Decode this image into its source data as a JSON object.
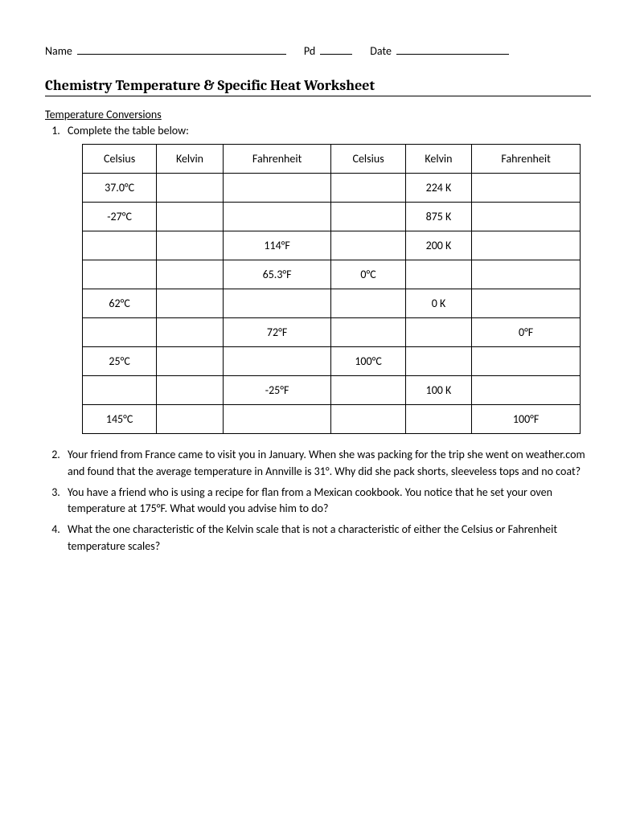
{
  "header": {
    "name_label": "Name",
    "pd_label": "Pd",
    "date_label": "Date"
  },
  "title": "Chemistry Temperature & Specific Heat Worksheet",
  "section": "Temperature Conversions",
  "q1_text": "Complete the table below:",
  "table": {
    "columns": [
      "Celsius",
      "Kelvin",
      "Fahrenheit",
      "Celsius",
      "Kelvin",
      "Fahrenheit"
    ],
    "rows": [
      [
        "37.0°C",
        "",
        "",
        "",
        "224 K",
        ""
      ],
      [
        "-27°C",
        "",
        "",
        "",
        "875 K",
        ""
      ],
      [
        "",
        "",
        "114°F",
        "",
        "200 K",
        ""
      ],
      [
        "",
        "",
        "65.3°F",
        "0°C",
        "",
        ""
      ],
      [
        "62°C",
        "",
        "",
        "",
        "0 K",
        ""
      ],
      [
        "",
        "",
        "72°F",
        "",
        "",
        "0°F"
      ],
      [
        "25°C",
        "",
        "",
        "100°C",
        "",
        ""
      ],
      [
        "",
        "",
        "-25°F",
        "",
        "100 K",
        ""
      ],
      [
        "145°C",
        "",
        "",
        "",
        "",
        "100°F"
      ]
    ]
  },
  "q2_text": "Your friend from France came to visit you in January.  When she was packing for the trip she went on weather.com and found that the average temperature in Annville is 31°.  Why did she pack shorts, sleeveless tops and no coat?",
  "q3_text": "You have a friend who is using a recipe for flan from a Mexican cookbook.  You notice that he set your oven temperature at 175°F.  What would you advise him to do?",
  "q4_text": "What the one characteristic of the Kelvin scale that is not a characteristic of either the Celsius or Fahrenheit temperature scales?"
}
